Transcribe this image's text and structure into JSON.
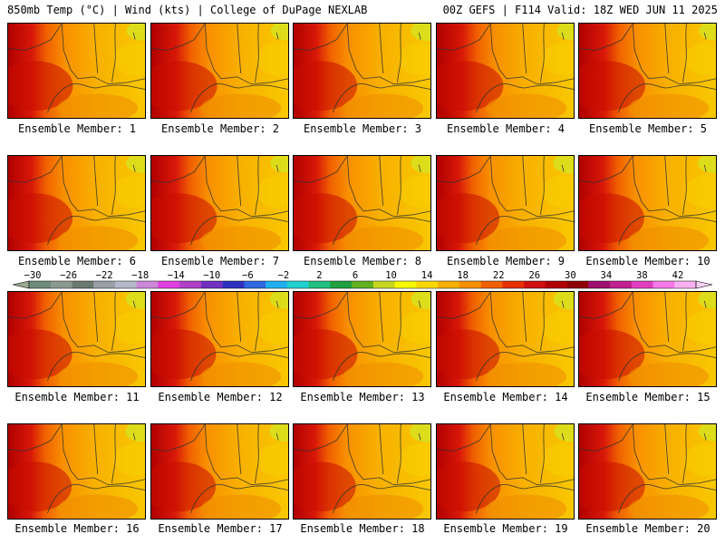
{
  "header": {
    "left": "850mb Temp (°C) | Wind (kts) | College of DuPage NEXLAB",
    "right": "00Z GEFS | F114 Valid: 18Z WED JUN 11 2025"
  },
  "member_prefix": "Ensemble Member: ",
  "members": [
    {
      "number": "1",
      "warmth": 0.62
    },
    {
      "number": "2",
      "warmth": 0.68
    },
    {
      "number": "3",
      "warmth": 0.55
    },
    {
      "number": "4",
      "warmth": 0.72
    },
    {
      "number": "5",
      "warmth": 0.7
    },
    {
      "number": "6",
      "warmth": 0.6
    },
    {
      "number": "7",
      "warmth": 0.66
    },
    {
      "number": "8",
      "warmth": 0.55
    },
    {
      "number": "9",
      "warmth": 0.5
    },
    {
      "number": "10",
      "warmth": 0.64
    },
    {
      "number": "11",
      "warmth": 0.58
    },
    {
      "number": "12",
      "warmth": 0.62
    },
    {
      "number": "13",
      "warmth": 0.57
    },
    {
      "number": "14",
      "warmth": 0.52
    },
    {
      "number": "15",
      "warmth": 0.66
    },
    {
      "number": "16",
      "warmth": 0.55
    },
    {
      "number": "17",
      "warmth": 0.6
    },
    {
      "number": "18",
      "warmth": 0.48
    },
    {
      "number": "19",
      "warmth": 0.56
    },
    {
      "number": "20",
      "warmth": 0.68
    }
  ],
  "colorbar": {
    "ticks": [
      "-30",
      "-26",
      "-22",
      "-18",
      "-14",
      "-10",
      "-6",
      "-2",
      "2",
      "6",
      "10",
      "14",
      "18",
      "22",
      "26",
      "30",
      "34",
      "38",
      "42"
    ],
    "colors": [
      "#6e8a78",
      "#8a9a90",
      "#6a7a70",
      "#9aa0a8",
      "#b4b8c8",
      "#cc88d8",
      "#e040e0",
      "#b040c8",
      "#7030c0",
      "#3030c0",
      "#3068e0",
      "#20b0f0",
      "#20d0d0",
      "#20c080",
      "#20a040",
      "#60b020",
      "#c8d820",
      "#f8f800",
      "#f8d800",
      "#f8b000",
      "#f89000",
      "#f06000",
      "#e83000",
      "#d01010",
      "#b00000",
      "#900000",
      "#a01070",
      "#c02090",
      "#e040c0",
      "#f878e8",
      "#f8b0f0"
    ]
  }
}
